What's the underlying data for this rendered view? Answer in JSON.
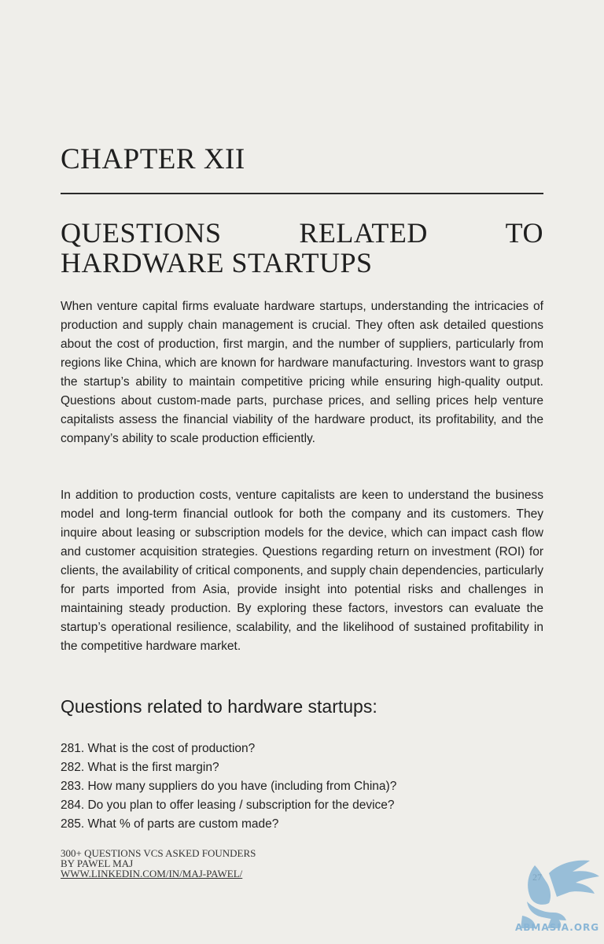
{
  "chapter": {
    "label": "CHAPTER XII",
    "title_line1_words": [
      "QUESTIONS",
      "RELATED",
      "TO"
    ],
    "title_line2": "HARDWARE STARTUPS"
  },
  "paragraphs": [
    "When venture capital firms evaluate hardware startups, understanding the intricacies of production and supply chain management is crucial. They often ask detailed questions about the cost of production, first margin, and the number of suppliers, particularly from regions like China, which are known for hardware manufacturing. Investors want to grasp the startup’s ability to maintain competitive pricing while ensuring high-quality output. Questions about custom-made parts, purchase prices, and selling prices help venture capitalists assess the financial viability of the hardware product, its profitability, and the company’s ability to scale production efficiently.",
    "In addition to production costs, venture capitalists are keen to understand the business model and long-term financial outlook for both the company and its customers. They inquire about leasing or subscription models for the device, which can impact cash flow and customer acquisition strategies. Questions regarding return on investment (ROI) for clients, the availability of critical components, and supply chain dependencies, particularly for parts imported from Asia, provide insight into potential risks and challenges in maintaining steady production. By exploring these factors, investors can evaluate the startup’s operational resilience, scalability, and the likelihood of sustained profitability in the competitive hardware market."
  ],
  "subheading": "Questions related to hardware startups:",
  "questions": [
    "281. What is the cost of production?",
    "282. What is the first margin?",
    "283. How many suppliers do you have (including from China)?",
    "284. Do you plan to offer leasing / subscription for the device?",
    "285. What % of parts are custom made?"
  ],
  "footer": {
    "line1": "300+ Questions VCs Asked Founders",
    "line2": "by Pawel Maj",
    "link": "www.linkedin.com/in/maj-pawel/"
  },
  "page_number": "27",
  "watermark": {
    "text": "ABMASIA.ORG",
    "color": "#8ab6d6"
  }
}
